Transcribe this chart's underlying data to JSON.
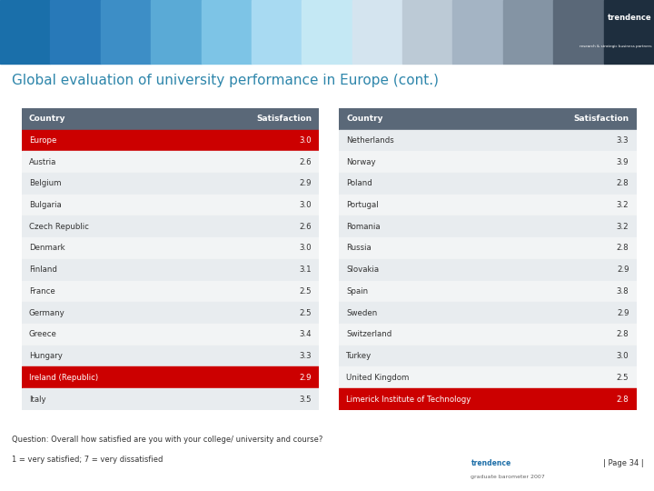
{
  "title": "Global evaluation of university performance in Europe (cont.)",
  "title_color": "#2E86AB",
  "header_bg": "#5a6878",
  "header_text_color": "#ffffff",
  "row_bg_light": "#e8ecef",
  "row_bg_white": "#f2f4f5",
  "highlight_red": "#cc0000",
  "highlight_red_text": "#ffffff",
  "col1_header": "Country",
  "col2_header": "Satisfaction",
  "table1": [
    [
      "Europe",
      "3.0",
      true
    ],
    [
      "Austria",
      "2.6",
      false
    ],
    [
      "Belgium",
      "2.9",
      false
    ],
    [
      "Bulgaria",
      "3.0",
      false
    ],
    [
      "Czech Republic",
      "2.6",
      false
    ],
    [
      "Denmark",
      "3.0",
      false
    ],
    [
      "Finland",
      "3.1",
      false
    ],
    [
      "France",
      "2.5",
      false
    ],
    [
      "Germany",
      "2.5",
      false
    ],
    [
      "Greece",
      "3.4",
      false
    ],
    [
      "Hungary",
      "3.3",
      false
    ],
    [
      "Ireland (Republic)",
      "2.9",
      true
    ],
    [
      "Italy",
      "3.5",
      false
    ]
  ],
  "table2": [
    [
      "Netherlands",
      "3.3",
      false
    ],
    [
      "Norway",
      "3.9",
      false
    ],
    [
      "Poland",
      "2.8",
      false
    ],
    [
      "Portugal",
      "3.2",
      false
    ],
    [
      "Romania",
      "3.2",
      false
    ],
    [
      "Russia",
      "2.8",
      false
    ],
    [
      "Slovakia",
      "2.9",
      false
    ],
    [
      "Spain",
      "3.8",
      false
    ],
    [
      "Sweden",
      "2.9",
      false
    ],
    [
      "Switzerland",
      "2.8",
      false
    ],
    [
      "Turkey",
      "3.0",
      false
    ],
    [
      "United Kingdom",
      "2.5",
      false
    ],
    [
      "Limerick Institute of Technology",
      "2.8",
      true
    ]
  ],
  "footnote1": "Question: Overall how satisfied are you with your college/ university and course?",
  "footnote2": "1 = very satisfied; 7 = very dissatisfied",
  "page_label": "| Page 34 |",
  "stripe_colors": [
    "#1a6faa",
    "#2879b8",
    "#3d8ec6",
    "#5aaad6",
    "#7dc4e6",
    "#a8daf2",
    "#c4e8f4",
    "#d4e4ef",
    "#bccad6",
    "#a4b4c4",
    "#8494a4",
    "#5a6878",
    "#1e2e3e"
  ],
  "trendence_color": "#1e6fa8"
}
